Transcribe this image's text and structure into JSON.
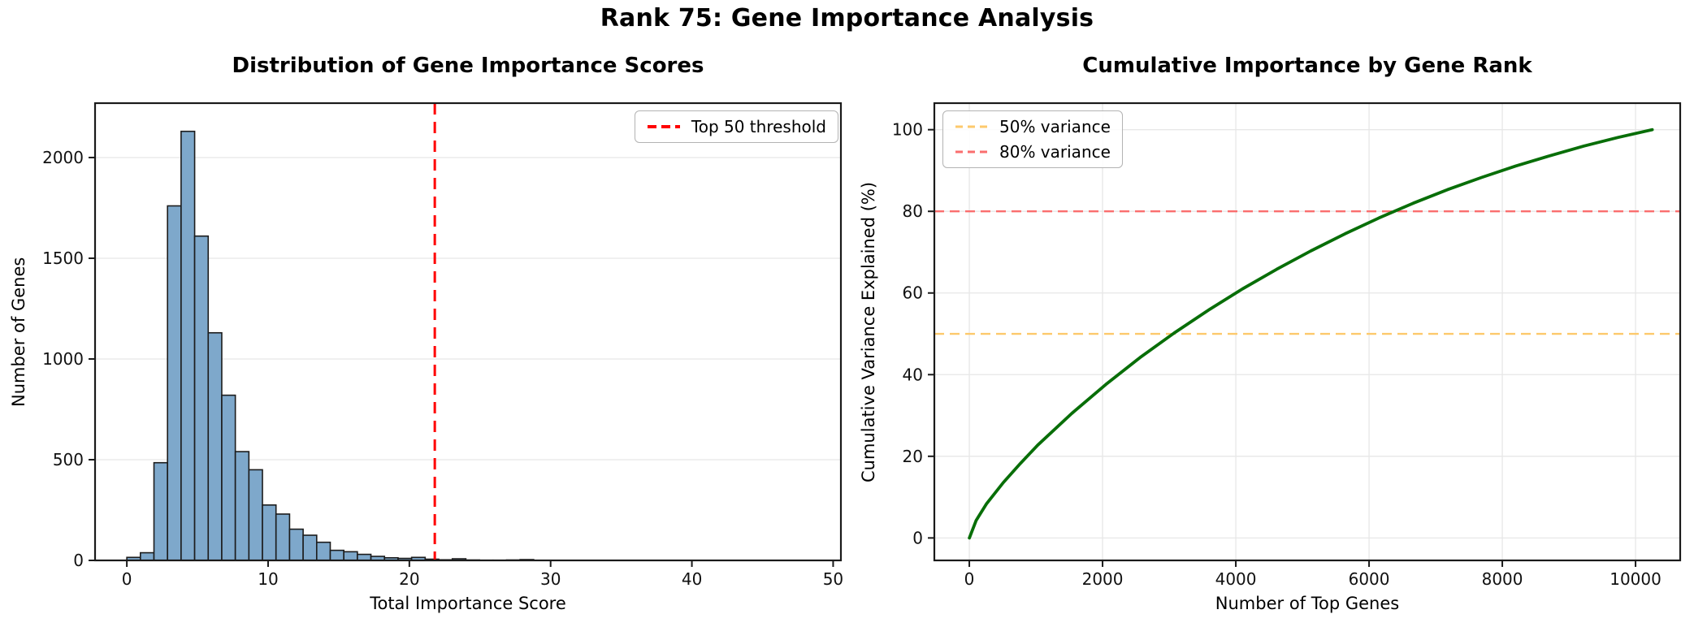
{
  "figure": {
    "suptitle": "Rank 75: Gene Importance Analysis"
  },
  "chart_data": [
    {
      "type": "bar",
      "title": "Distribution of Gene Importance Scores",
      "xlabel": "Total Importance Score",
      "ylabel": "Number of Genes",
      "xlim": [
        -2.25,
        50.55
      ],
      "ylim": [
        0,
        2270
      ],
      "xticks": [
        0,
        10,
        20,
        30,
        40,
        50
      ],
      "yticks": [
        0,
        500,
        1000,
        1500,
        2000
      ],
      "grid": "y",
      "bar_color": "#7ea8cb",
      "bar_edge_color": "#1c1c1c",
      "bin_start": 0,
      "bin_width": 0.96,
      "counts": [
        15,
        38,
        485,
        1760,
        2130,
        1610,
        1130,
        820,
        540,
        450,
        275,
        230,
        155,
        125,
        90,
        50,
        43,
        30,
        20,
        13,
        10,
        15,
        6,
        3,
        8,
        2,
        1,
        1,
        2,
        4
      ],
      "threshold": {
        "x": 21.8,
        "color": "#ff0000",
        "label": "Top 50 threshold"
      },
      "legend": {
        "position": "top-right",
        "entries": [
          {
            "label": "Top 50 threshold",
            "color": "#ff0000"
          }
        ]
      }
    },
    {
      "type": "line",
      "title": "Cumulative Importance by Gene Rank",
      "xlabel": "Number of Top Genes",
      "ylabel": "Cumulative Variance Explained (%)",
      "xlim": [
        -525,
        10670
      ],
      "ylim": [
        -5.5,
        106.5
      ],
      "xticks": [
        0,
        2000,
        4000,
        6000,
        8000,
        10000
      ],
      "yticks": [
        0,
        20,
        40,
        60,
        80,
        100
      ],
      "grid": "both",
      "line_color": "#086e08",
      "points": {
        "x": [
          0,
          103,
          256,
          512,
          769,
          1025,
          1538,
          2050,
          2563,
          3075,
          3588,
          4100,
          4613,
          5125,
          5638,
          6150,
          6663,
          7175,
          7688,
          8200,
          8713,
          9225,
          9738,
          10250
        ],
        "y": [
          0,
          4.3,
          8.3,
          13.6,
          18.3,
          22.7,
          30.5,
          37.6,
          44.2,
          50.2,
          55.8,
          61.0,
          65.8,
          70.3,
          74.5,
          78.4,
          82.0,
          85.3,
          88.3,
          91.1,
          93.6,
          96.0,
          98.1,
          100
        ]
      },
      "hlines": [
        {
          "y": 50,
          "color": "#fdc96c",
          "label": "50% variance"
        },
        {
          "y": 80,
          "color": "#fa6e6e",
          "label": "80% variance"
        }
      ],
      "legend": {
        "position": "top-left",
        "entries": [
          {
            "label": "50% variance",
            "color": "#fdc96c"
          },
          {
            "label": "80% variance",
            "color": "#fa6e6e"
          }
        ]
      }
    }
  ]
}
